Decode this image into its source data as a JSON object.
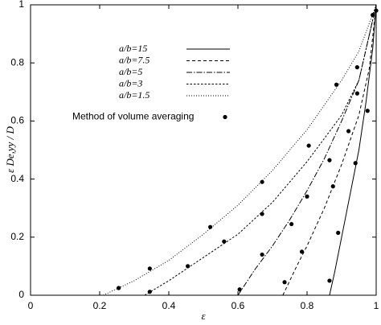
{
  "chart_data": {
    "type": "line",
    "x_label": "ε",
    "y_label": "ε De,yy / D",
    "xlim": [
      0,
      1
    ],
    "ylim": [
      0,
      1
    ],
    "xticks": [
      0,
      0.2,
      0.4,
      0.6,
      0.8,
      1
    ],
    "yticks": [
      0,
      0.2,
      0.4,
      0.6,
      0.8,
      1
    ],
    "series": [
      {
        "name": "a/b=15",
        "color": "#000000",
        "dash": "none",
        "x": [
          0.865,
          0.88,
          0.9,
          0.92,
          0.95,
          0.97,
          0.99,
          1
        ],
        "values": [
          0,
          0.08,
          0.2,
          0.32,
          0.5,
          0.66,
          0.85,
          1
        ]
      },
      {
        "name": "a/b=7.5",
        "color": "#000000",
        "dash": "4,3",
        "x": [
          0.73,
          0.77,
          0.8,
          0.85,
          0.9,
          0.95,
          0.98,
          1
        ],
        "values": [
          0,
          0.1,
          0.17,
          0.3,
          0.45,
          0.62,
          0.78,
          1
        ]
      },
      {
        "name": "a/b=5",
        "color": "#000000",
        "dash": "7,2,1.5,2",
        "x": [
          0.6,
          0.65,
          0.7,
          0.75,
          0.8,
          0.85,
          0.9,
          0.95,
          1
        ],
        "values": [
          0,
          0.09,
          0.17,
          0.26,
          0.36,
          0.47,
          0.6,
          0.74,
          1
        ]
      },
      {
        "name": "a/b=3",
        "color": "#000000",
        "dash": "2.5,2",
        "x": [
          0.33,
          0.4,
          0.5,
          0.6,
          0.7,
          0.8,
          0.9,
          0.95,
          1
        ],
        "values": [
          0,
          0.05,
          0.13,
          0.21,
          0.32,
          0.46,
          0.62,
          0.74,
          1
        ]
      },
      {
        "name": "a/b=1.5",
        "color": "#000000",
        "dash": "1,2",
        "x": [
          0.21,
          0.3,
          0.4,
          0.5,
          0.6,
          0.7,
          0.8,
          0.9,
          0.95,
          1
        ],
        "values": [
          0,
          0.05,
          0.12,
          0.21,
          0.31,
          0.43,
          0.57,
          0.74,
          0.84,
          1
        ]
      },
      {
        "name": "Method of volume averaging",
        "color": "#000000",
        "marker": "dot",
        "x": [
          0.255,
          0.345,
          0.52,
          0.67,
          0.885,
          0.945,
          0.345,
          0.455,
          0.56,
          0.67,
          0.805,
          0.945,
          0.605,
          0.67,
          0.755,
          0.8,
          0.865,
          0.92,
          0.735,
          0.785,
          0.875,
          0.94,
          0.865,
          0.89,
          0.975,
          0.99,
          1
        ],
        "values": [
          0.025,
          0.092,
          0.235,
          0.39,
          0.725,
          0.785,
          0.012,
          0.1,
          0.185,
          0.28,
          0.515,
          0.695,
          0.02,
          0.14,
          0.245,
          0.34,
          0.465,
          0.565,
          0.045,
          0.15,
          0.375,
          0.455,
          0.05,
          0.215,
          0.635,
          0.965,
          0.98
        ]
      }
    ]
  }
}
